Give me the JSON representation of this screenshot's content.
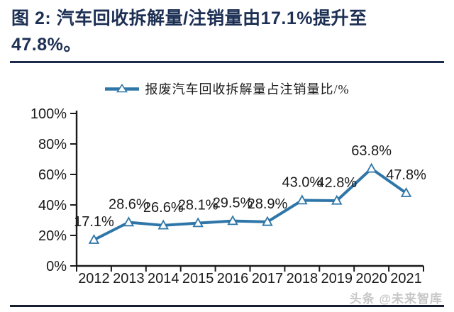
{
  "title": {
    "line1": "图 2: 汽车回收拆解量/注销量由17.1%提升至",
    "line2": "47.8%。"
  },
  "legend": {
    "label": "报废汽车回收拆解量占注销量比/%"
  },
  "watermark": {
    "text": "头条 @未来智库"
  },
  "colors": {
    "title_navy": "#1d3054",
    "series_blue": "#2f76a8",
    "axis_black": "#1a1a1a",
    "watermark_gray": "#c7c7c7"
  },
  "chart_data": {
    "type": "line",
    "title": "",
    "xlabel": "",
    "ylabel": "",
    "categories": [
      "2012",
      "2013",
      "2014",
      "2015",
      "2016",
      "2017",
      "2018",
      "2019",
      "2020",
      "2021"
    ],
    "series": [
      {
        "name": "报废汽车回收拆解量占注销量比/%",
        "values": [
          17.1,
          28.6,
          26.6,
          28.1,
          29.5,
          28.9,
          43.0,
          42.8,
          63.8,
          47.8
        ]
      }
    ],
    "point_labels": [
      "17.1%",
      "28.6%",
      "26.6%",
      "28.1%",
      "29.5%",
      "28.9%",
      "43.0%",
      "42.8%",
      "63.8%",
      "47.8%"
    ],
    "ylim": [
      0,
      100
    ],
    "yticks": [
      0,
      20,
      40,
      60,
      80,
      100
    ],
    "ytick_labels": [
      "0%",
      "20%",
      "40%",
      "60%",
      "80%",
      "100%"
    ],
    "grid": false,
    "legend_position": "top-center",
    "marker": "open-triangle"
  }
}
